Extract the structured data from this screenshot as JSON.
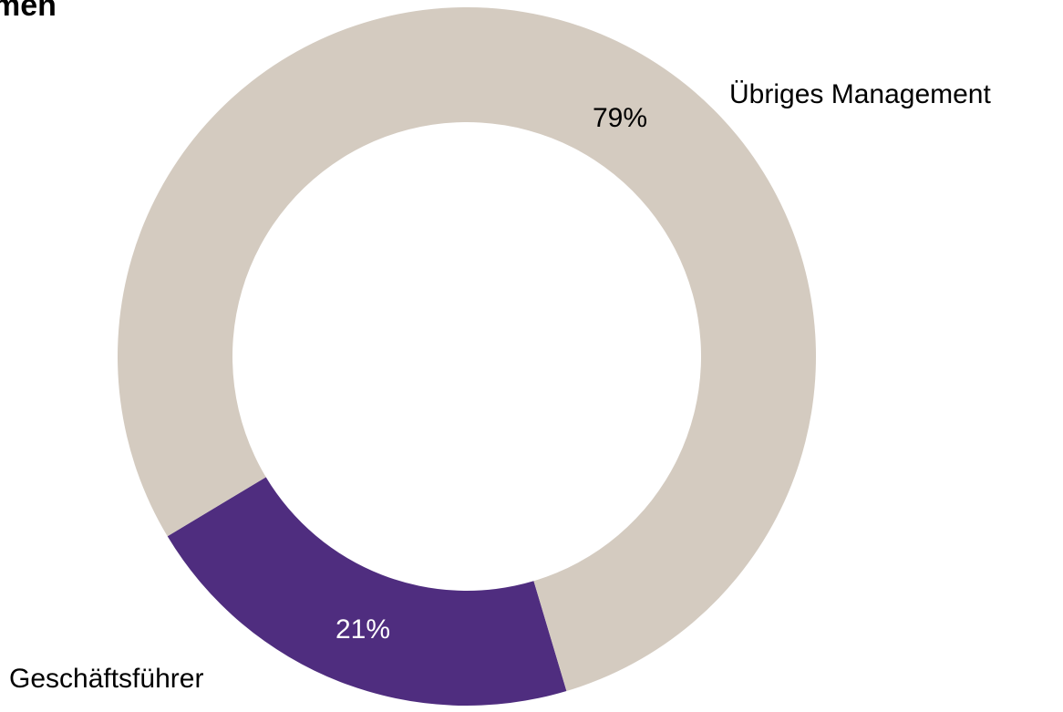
{
  "chart_data": {
    "type": "donut",
    "title": "men",
    "categories": [
      "Geschäftsführer",
      "Übriges Management"
    ],
    "values": [
      21,
      79
    ],
    "value_labels": [
      "21%",
      "79%"
    ],
    "colors": [
      "#4f2d7f",
      "#d4cbc0"
    ]
  }
}
